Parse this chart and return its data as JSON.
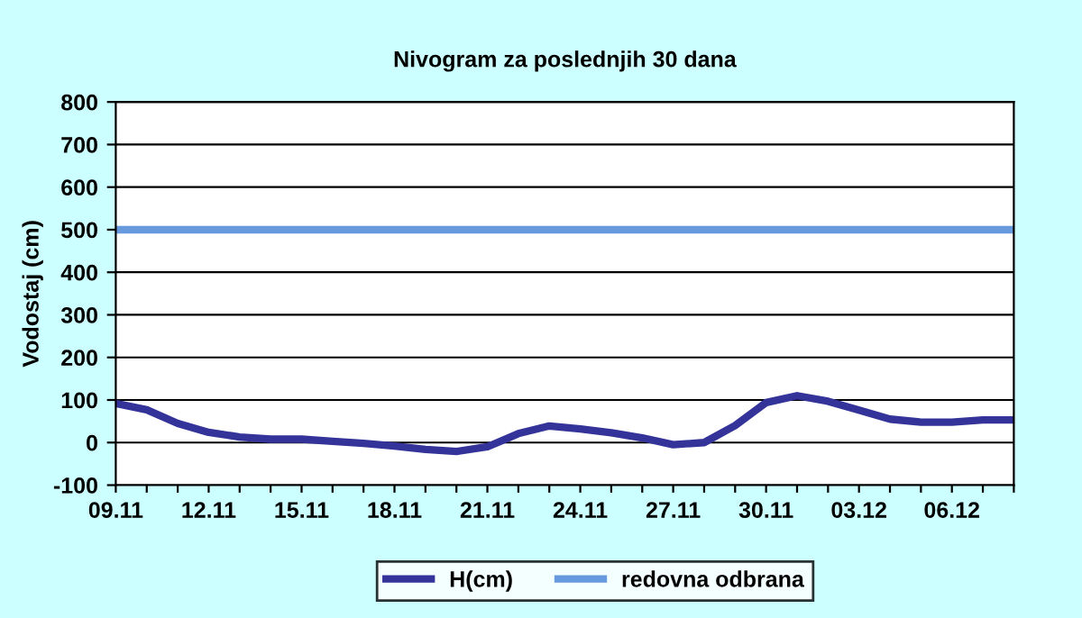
{
  "chart_data": {
    "type": "line",
    "title": "Nivogram za poslednjih 30 dana",
    "ylabel": "Vodostaj (cm)",
    "categories": [
      "09.11",
      null,
      null,
      "12.11",
      null,
      null,
      "15.11",
      null,
      null,
      "18.11",
      null,
      null,
      "21.11",
      null,
      null,
      "24.11",
      null,
      null,
      "27.11",
      null,
      null,
      "30.11",
      null,
      null,
      "03.12",
      null,
      null,
      "06.12",
      null,
      null
    ],
    "series": [
      {
        "name": "H(cm)",
        "color": "#333399",
        "values": [
          92,
          77,
          45,
          24,
          13,
          8,
          8,
          3,
          -2,
          -8,
          -16,
          -21,
          -10,
          21,
          39,
          32,
          23,
          11,
          -5,
          0,
          40,
          94,
          110,
          97,
          76,
          55,
          48,
          48,
          53,
          53
        ]
      },
      {
        "name": "redovna odbrana",
        "color": "#6699dd",
        "values": [
          500,
          500,
          500,
          500,
          500,
          500,
          500,
          500,
          500,
          500,
          500,
          500,
          500,
          500,
          500,
          500,
          500,
          500,
          500,
          500,
          500,
          500,
          500,
          500,
          500,
          500,
          500,
          500,
          500,
          500
        ]
      }
    ],
    "ylim": [
      -100,
      800
    ],
    "yticks": [
      -100,
      0,
      100,
      200,
      300,
      400,
      500,
      600,
      700,
      800
    ],
    "grid": "y",
    "legend": "bottom",
    "line_style": "solid",
    "marker": "none"
  }
}
